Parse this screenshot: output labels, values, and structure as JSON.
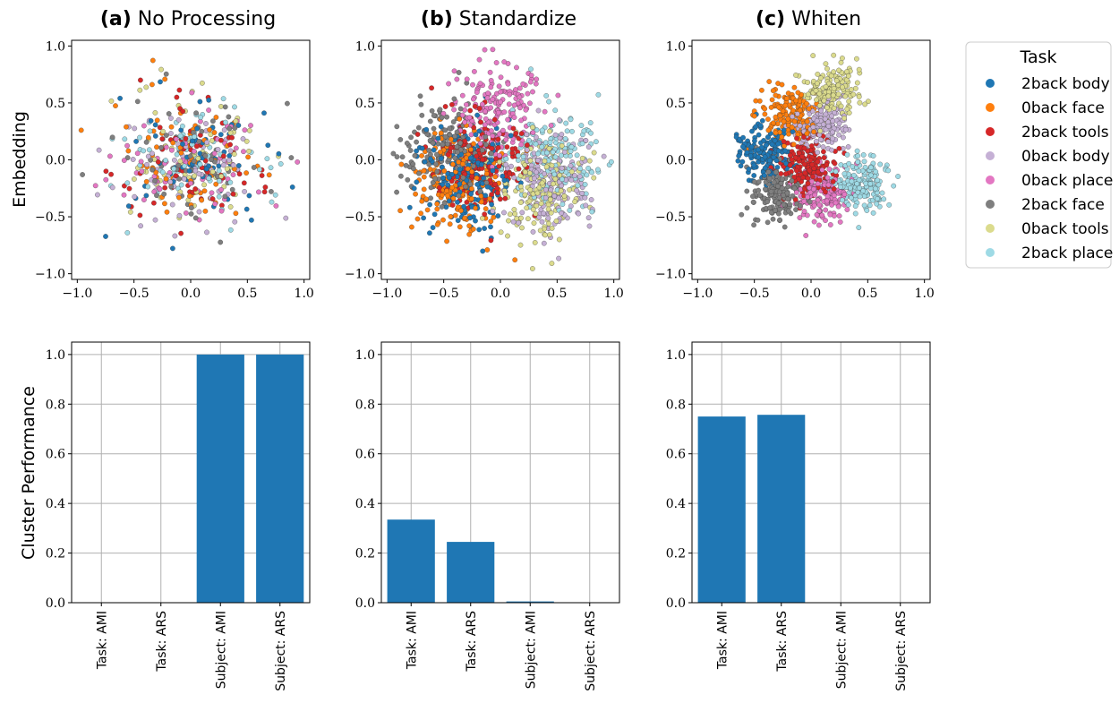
{
  "figure": {
    "row_labels": {
      "top": "Embedding",
      "bottom": "Cluster Performance"
    },
    "legend": {
      "title": "Task",
      "entries": [
        {
          "label": "2back body",
          "color": "#1f77b4"
        },
        {
          "label": "0back face",
          "color": "#ff7f0e"
        },
        {
          "label": "2back tools",
          "color": "#d62728"
        },
        {
          "label": "0back body",
          "color": "#c5b0d5"
        },
        {
          "label": "0back place",
          "color": "#e377c2"
        },
        {
          "label": "2back face",
          "color": "#7f7f7f"
        },
        {
          "label": "0back tools",
          "color": "#dbdb8d"
        },
        {
          "label": "2back place",
          "color": "#9edae5"
        }
      ]
    }
  },
  "chart_data": [
    {
      "type": "scatter",
      "title_prefix": "(a)",
      "title": "No Processing",
      "xlim": [
        -1.05,
        1.05
      ],
      "ylim": [
        -1.05,
        1.05
      ],
      "xticks": [
        "−1.0",
        "−0.5",
        "0.0",
        "0.5",
        "1.0"
      ],
      "yticks": [
        "−1.0",
        "−0.5",
        "0.0",
        "0.5",
        "1.0"
      ],
      "tick_values": [
        -1.0,
        -0.5,
        0.0,
        0.5,
        1.0
      ],
      "distribution": "all eight task classes fully intermixed in one cloud centered near (0, 0), radius about 0.85",
      "centers": [
        [
          0.0,
          0.0
        ],
        [
          0.0,
          0.0
        ],
        [
          0.0,
          0.0
        ],
        [
          0.0,
          0.0
        ],
        [
          0.0,
          0.0
        ],
        [
          0.0,
          0.0
        ],
        [
          0.0,
          0.0
        ],
        [
          0.0,
          0.0
        ]
      ],
      "spread": [
        0.34,
        0.25
      ],
      "points_per_class": 70
    },
    {
      "type": "scatter",
      "title_prefix": "(b)",
      "title": "Standardize",
      "xlim": [
        -1.05,
        1.05
      ],
      "ylim": [
        -1.05,
        1.05
      ],
      "xticks": [
        "−1.0",
        "−0.5",
        "0.0",
        "0.5",
        "1.0"
      ],
      "yticks": [
        "−1.0",
        "−0.5",
        "0.0",
        "0.5",
        "1.0"
      ],
      "tick_values": [
        -1.0,
        -0.5,
        0.0,
        0.5,
        1.0
      ],
      "distribution": "partially separated: 2back classes on the left, 0back place top-center, 2back place / 0back body / 0back tools on the right",
      "centers": [
        [
          -0.3,
          -0.15
        ],
        [
          -0.35,
          -0.2
        ],
        [
          -0.2,
          0.0
        ],
        [
          0.45,
          -0.2
        ],
        [
          -0.05,
          0.45
        ],
        [
          -0.45,
          0.1
        ],
        [
          0.35,
          -0.25
        ],
        [
          0.5,
          0.0
        ]
      ],
      "spread": [
        0.2,
        0.22
      ],
      "points_per_class": 180
    },
    {
      "type": "scatter",
      "title_prefix": "(c)",
      "title": "Whiten",
      "xlim": [
        -1.05,
        1.05
      ],
      "ylim": [
        -1.05,
        1.05
      ],
      "xticks": [
        "−1.0",
        "−0.5",
        "0.0",
        "0.5",
        "1.0"
      ],
      "yticks": [
        "−1.0",
        "−0.5",
        "0.0",
        "0.5",
        "1.0"
      ],
      "tick_values": [
        -1.0,
        -0.5,
        0.0,
        0.5,
        1.0
      ],
      "distribution": "well separated clusters: 0back face top-left, 0back tools top, 2back body left, 2back place right, 0back place bottom-center, 2back face bottom-left",
      "centers": [
        [
          -0.4,
          0.05
        ],
        [
          -0.2,
          0.4
        ],
        [
          -0.05,
          -0.05
        ],
        [
          0.1,
          0.3
        ],
        [
          0.1,
          -0.3
        ],
        [
          -0.3,
          -0.3
        ],
        [
          0.2,
          0.6
        ],
        [
          0.45,
          -0.2
        ]
      ],
      "spread": [
        0.12,
        0.12
      ],
      "points_per_class": 170
    },
    {
      "type": "bar",
      "categories": [
        "Task: AMI",
        "Task: ARS",
        "Subject: AMI",
        "Subject: ARS"
      ],
      "values": [
        0.0,
        0.0,
        1.0,
        1.0
      ],
      "ylim": [
        0.0,
        1.05
      ],
      "yticks": [
        "0.0",
        "0.2",
        "0.4",
        "0.6",
        "0.8",
        "1.0"
      ],
      "tick_values": [
        0.0,
        0.2,
        0.4,
        0.6,
        0.8,
        1.0
      ],
      "grid": true
    },
    {
      "type": "bar",
      "categories": [
        "Task: AMI",
        "Task: ARS",
        "Subject: AMI",
        "Subject: ARS"
      ],
      "values": [
        0.335,
        0.245,
        0.005,
        0.0
      ],
      "ylim": [
        0.0,
        1.05
      ],
      "yticks": [
        "0.0",
        "0.2",
        "0.4",
        "0.6",
        "0.8",
        "1.0"
      ],
      "tick_values": [
        0.0,
        0.2,
        0.4,
        0.6,
        0.8,
        1.0
      ],
      "grid": true
    },
    {
      "type": "bar",
      "categories": [
        "Task: AMI",
        "Task: ARS",
        "Subject: AMI",
        "Subject: ARS"
      ],
      "values": [
        0.75,
        0.757,
        0.0,
        0.0
      ],
      "ylim": [
        0.0,
        1.05
      ],
      "yticks": [
        "0.0",
        "0.2",
        "0.4",
        "0.6",
        "0.8",
        "1.0"
      ],
      "tick_values": [
        0.0,
        0.2,
        0.4,
        0.6,
        0.8,
        1.0
      ],
      "grid": true
    }
  ]
}
